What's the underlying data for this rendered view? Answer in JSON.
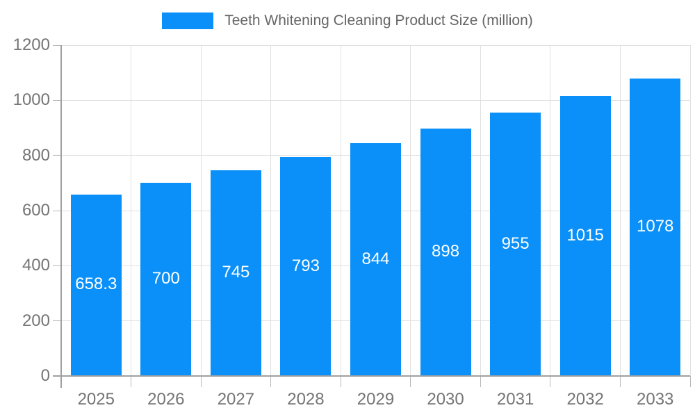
{
  "legend": {
    "label": "Teeth Whitening Cleaning Product Size (million)"
  },
  "colors": {
    "bar": "#0a90f8",
    "axis": "#a0a0a0",
    "grid": "#e0e0e0",
    "tick": "#b8b8b8",
    "tick_label": "#757575",
    "value_label": "#ffffff",
    "legend_text": "#666666",
    "background": "#ffffff"
  },
  "chart_data": {
    "type": "bar",
    "title": "Teeth Whitening Cleaning Product Size (million)",
    "categories": [
      "2025",
      "2026",
      "2027",
      "2028",
      "2029",
      "2030",
      "2031",
      "2032",
      "2033"
    ],
    "values": [
      658.3,
      700,
      745,
      793,
      844,
      898,
      955,
      1015,
      1078
    ],
    "value_labels": [
      "658.3",
      "700",
      "745",
      "793",
      "844",
      "898",
      "955",
      "1015",
      "1078"
    ],
    "series_name": "Teeth Whitening Cleaning Product Size (million)",
    "xlabel": "",
    "ylabel": "",
    "ylim": [
      0,
      1200
    ],
    "yticks": [
      0,
      200,
      400,
      600,
      800,
      1000,
      1200
    ],
    "grid": true,
    "legend_position": "top"
  }
}
